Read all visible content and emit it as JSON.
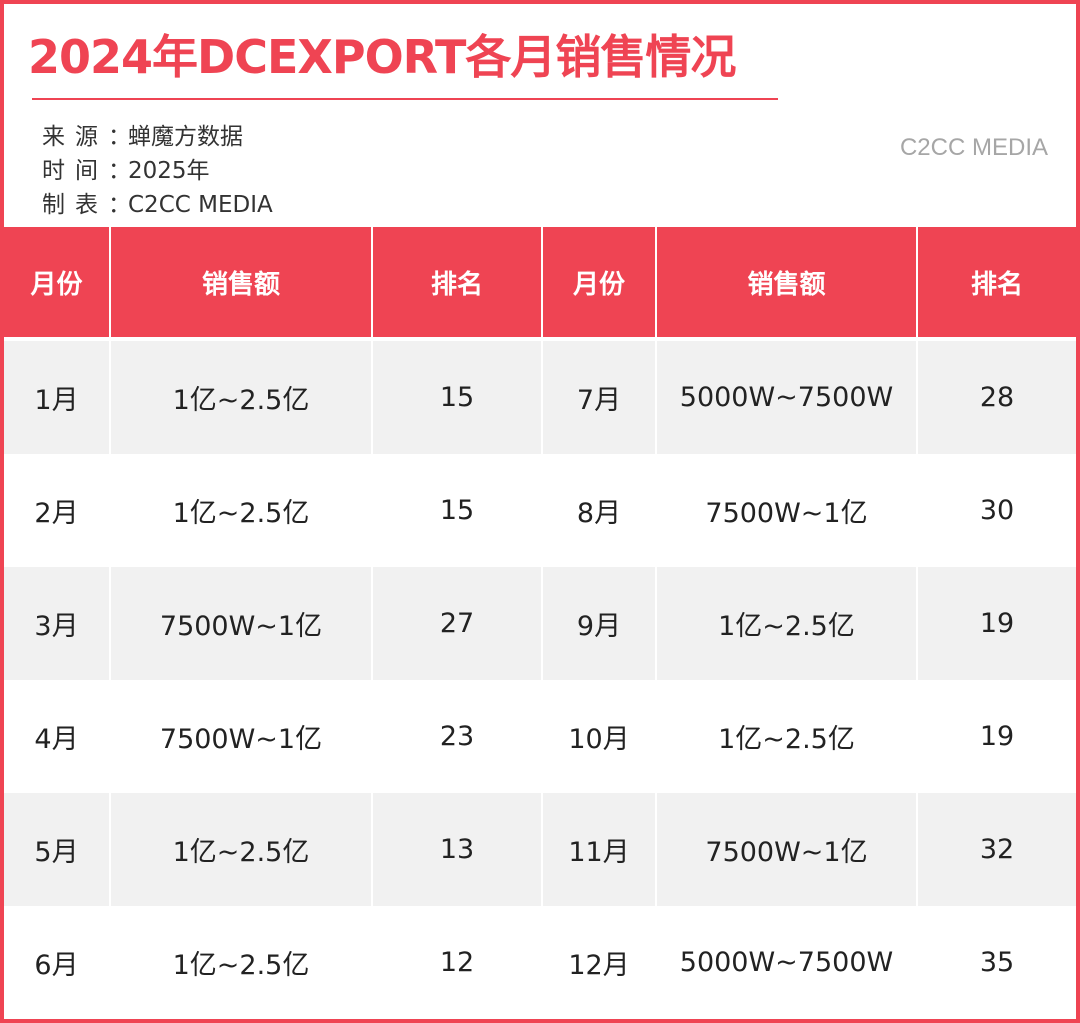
{
  "header": {
    "title": "2024年DCEXPORT各月销售情况",
    "watermark": "C2CC MEDIA"
  },
  "meta": [
    {
      "label": "来源：",
      "value": "蝉魔方数据"
    },
    {
      "label": "时间：",
      "value": "2025年"
    },
    {
      "label": "制表：",
      "value": "C2CC  MEDIA"
    }
  ],
  "colors": {
    "accent": "#ef4453",
    "row_stripe": "#f1f1f1"
  },
  "chart_data": {
    "type": "table",
    "title": "2024年DCEXPORT各月销售情况",
    "columns": [
      "月份",
      "销售额",
      "排名",
      "月份",
      "销售额",
      "排名"
    ],
    "rows": [
      [
        "1月",
        "1亿~2.5亿",
        "15",
        "7月",
        "5000W~7500W",
        "28"
      ],
      [
        "2月",
        "1亿~2.5亿",
        "15",
        "8月",
        "7500W~1亿",
        "30"
      ],
      [
        "3月",
        "7500W~1亿",
        "27",
        "9月",
        "1亿~2.5亿",
        "19"
      ],
      [
        "4月",
        "7500W~1亿",
        "23",
        "10月",
        "1亿~2.5亿",
        "19"
      ],
      [
        "5月",
        "1亿~2.5亿",
        "13",
        "11月",
        "7500W~1亿",
        "32"
      ],
      [
        "6月",
        "1亿~2.5亿",
        "12",
        "12月",
        "5000W~7500W",
        "35"
      ]
    ]
  }
}
